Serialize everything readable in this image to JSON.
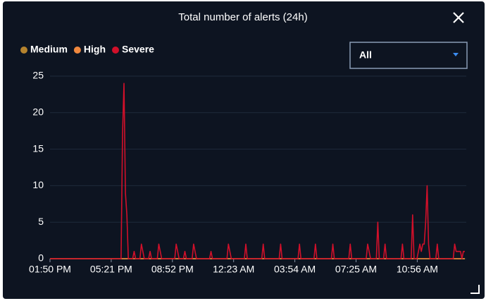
{
  "chart_data": {
    "type": "line",
    "title": "Total number of alerts (24h)",
    "x": [
      "01:50 PM",
      "05:55 PM",
      "06:00 PM",
      "06:05 PM",
      "06:10 PM",
      "06:15 PM",
      "06:20 PM",
      "06:35 PM",
      "06:40 PM",
      "06:45 PM",
      "07:00 PM",
      "07:05 PM",
      "07:10 PM",
      "07:15 PM",
      "07:30 PM",
      "07:35 PM",
      "07:40 PM",
      "08:00 PM",
      "08:05 PM",
      "08:10 PM",
      "08:15 PM",
      "09:00 PM",
      "09:05 PM",
      "09:10 PM",
      "09:15 PM",
      "09:30 PM",
      "09:35 PM",
      "09:40 PM",
      "10:00 PM",
      "10:05 PM",
      "10:10 PM",
      "10:15 PM",
      "11:00 PM",
      "11:05 PM",
      "11:10 PM",
      "12:00 AM",
      "12:05 AM",
      "12:10 AM",
      "12:15 AM",
      "01:00 AM",
      "01:05 AM",
      "01:10 AM",
      "02:00 AM",
      "02:05 AM",
      "02:10 AM",
      "03:00 AM",
      "03:05 AM",
      "03:10 AM",
      "04:05 AM",
      "04:10 AM",
      "04:15 AM",
      "05:00 AM",
      "05:05 AM",
      "05:10 AM",
      "06:00 AM",
      "06:05 AM",
      "06:10 AM",
      "07:00 AM",
      "07:05 AM",
      "07:10 AM",
      "08:00 AM",
      "08:05 AM",
      "08:10 AM",
      "08:15 AM",
      "08:35 AM",
      "08:40 AM",
      "08:45 AM",
      "09:00 AM",
      "09:05 AM",
      "09:10 AM",
      "10:00 AM",
      "10:05 AM",
      "10:10 AM",
      "10:35 AM",
      "10:40 AM",
      "10:45 AM",
      "10:55 AM",
      "11:00 AM",
      "11:05 AM",
      "11:10 AM",
      "11:15 AM",
      "11:20 AM",
      "11:25 AM",
      "11:30 AM",
      "11:35 AM",
      "11:40 AM",
      "12:00 PM",
      "12:05 PM",
      "12:10 PM",
      "01:00 PM",
      "01:05 PM",
      "01:10 PM",
      "01:15 PM",
      "01:20 PM",
      "01:25 PM",
      "01:30 PM",
      "01:35 PM",
      "01:40 PM"
    ],
    "series": [
      {
        "name": "Medium",
        "color": "#b5832e",
        "values": [
          0,
          0,
          0,
          0,
          0,
          0,
          0,
          0,
          0,
          0,
          0,
          0,
          0,
          0,
          0,
          0,
          0,
          0,
          0,
          0,
          0,
          0,
          0,
          0,
          0,
          0,
          0,
          0,
          0,
          0,
          0,
          0,
          0,
          0,
          0,
          0,
          0,
          0,
          0,
          0,
          0,
          0,
          0,
          0,
          0,
          0,
          0,
          0,
          0,
          0,
          0,
          0,
          0,
          0,
          0,
          0,
          0,
          0,
          0,
          0,
          0,
          0,
          0,
          0,
          0,
          0,
          0,
          0,
          0,
          0,
          0,
          0,
          0,
          0,
          0,
          0,
          0,
          0,
          0,
          0,
          0,
          0,
          0,
          0,
          0,
          0,
          0,
          0,
          0,
          0,
          0,
          0,
          0,
          0,
          0,
          0,
          0,
          0
        ]
      },
      {
        "name": "High",
        "color": "#f0883e",
        "values": [
          0,
          0,
          0,
          0,
          0,
          0,
          0,
          0,
          0,
          0,
          0,
          0,
          0,
          0,
          0,
          0,
          0,
          0,
          0,
          0,
          0,
          0,
          0,
          0,
          0,
          0,
          0,
          0,
          0,
          0,
          0,
          0,
          0,
          0,
          0,
          0,
          0,
          0,
          0,
          0,
          0,
          0,
          0,
          0,
          0,
          0,
          0,
          0,
          0,
          0,
          0,
          0,
          0,
          0,
          0,
          0,
          0,
          0,
          0,
          0,
          0,
          0,
          0,
          0,
          0,
          0,
          0,
          0,
          0,
          0,
          0,
          0,
          0,
          0,
          0,
          0,
          0,
          0,
          0,
          0,
          0,
          0,
          0,
          0,
          0,
          0,
          0,
          0,
          0,
          0,
          0,
          0,
          0,
          0,
          0,
          0,
          0,
          0
        ]
      },
      {
        "name": "Severe",
        "color": "#d1102a",
        "values": [
          0,
          0,
          17,
          24,
          9,
          6,
          0,
          0,
          1,
          0,
          0,
          2,
          1,
          0,
          0,
          1,
          0,
          0,
          2,
          1,
          0,
          0,
          2,
          1,
          0,
          0,
          1,
          0,
          0,
          2,
          1,
          0,
          0,
          1,
          0,
          0,
          2,
          1,
          0,
          0,
          2,
          0,
          0,
          2,
          0,
          0,
          2,
          0,
          0,
          2,
          0,
          0,
          2,
          0,
          0,
          2,
          0,
          0,
          2,
          0,
          0,
          2,
          1,
          0,
          0,
          5,
          0,
          0,
          2,
          0,
          0,
          2,
          0,
          0,
          6,
          0,
          0,
          1,
          2,
          1,
          2,
          2,
          5,
          10,
          2,
          0,
          0,
          2,
          0,
          0,
          2,
          1,
          1,
          1,
          1,
          0,
          1,
          1
        ]
      }
    ],
    "xlim": [
      "01:50 PM",
      "01:45 PM"
    ],
    "xticks": [
      "01:50 PM",
      "05:21 PM",
      "08:52 PM",
      "12:23 AM",
      "03:54 AM",
      "07:25 AM",
      "10:56 AM"
    ],
    "ylim": [
      0,
      25
    ],
    "yticks": [
      0,
      5,
      10,
      15,
      20,
      25
    ],
    "grid": true
  },
  "filter": {
    "selected": "All"
  }
}
